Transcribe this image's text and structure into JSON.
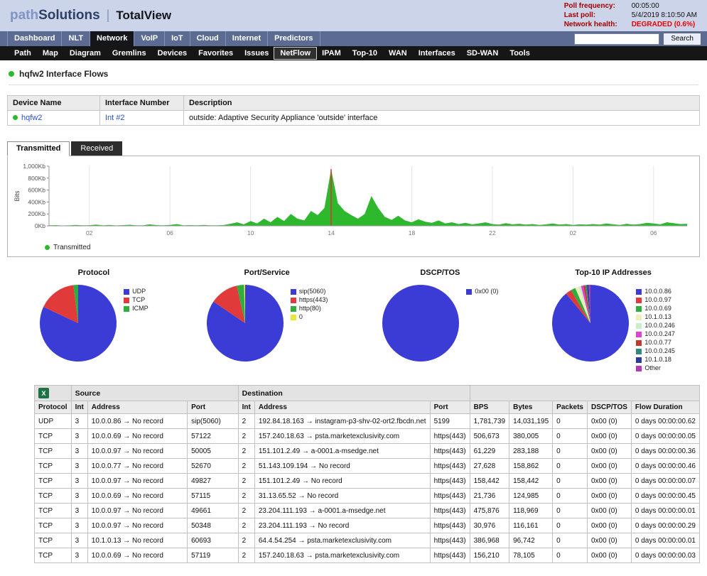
{
  "header": {
    "logo": {
      "brand_light": "path",
      "brand_dark": "Solutions",
      "divider": "|",
      "product": "TotalView"
    },
    "stats": [
      {
        "label": "Poll frequency:",
        "value": "00:05:00"
      },
      {
        "label": "Last poll:",
        "value": "5/4/2019 8:10:50 AM"
      },
      {
        "label": "Network health:",
        "value": "DEGRADED (0.6%)"
      }
    ]
  },
  "nav": {
    "items": [
      "Dashboard",
      "NLT",
      "Network",
      "VoIP",
      "IoT",
      "Cloud",
      "Internet",
      "Predictors"
    ],
    "active": "Network",
    "search": {
      "placeholder": "",
      "button_label": "Search"
    }
  },
  "subnav": {
    "items": [
      "Path",
      "Map",
      "Diagram",
      "Gremlins",
      "Devices",
      "Favorites",
      "Issues",
      "NetFlow",
      "IPAM",
      "Top-10",
      "WAN",
      "Interfaces",
      "SD-WAN",
      "Tools"
    ],
    "active": "NetFlow"
  },
  "page": {
    "title": "hqfw2 Interface Flows"
  },
  "device_table": {
    "columns": [
      "Device Name",
      "Interface Number",
      "Description"
    ],
    "rows": [
      {
        "device": "hqfw2",
        "interface": "Int #2",
        "description": "outside: Adaptive Security Appliance 'outside' interface"
      }
    ]
  },
  "view_tabs": {
    "items": [
      "Transmitted",
      "Received"
    ],
    "active": "Transmitted"
  },
  "chart_data": {
    "type": "area",
    "title": "Transmitted traffic (Bits over time)",
    "ylabel": "Bits",
    "ylim": [
      0,
      1000
    ],
    "y_ticks": [
      "1,000Kb",
      "800Kb",
      "600Kb",
      "400Kb",
      "200Kb",
      "0Kb"
    ],
    "x_ticks": [
      "02",
      "06",
      "10",
      "14",
      "18",
      "22",
      "02",
      "06"
    ],
    "x_tick_hours": [
      2,
      6,
      10,
      14,
      18,
      22,
      26,
      30
    ],
    "sample_interval_hours": 0.3333,
    "unit": "Kb",
    "series_name": "Transmitted",
    "series_color": "#2eb82e",
    "samples": [
      8,
      12,
      6,
      10,
      15,
      8,
      11,
      20,
      9,
      14,
      7,
      12,
      18,
      10,
      8,
      25,
      12,
      9,
      15,
      30,
      10,
      12,
      8,
      14,
      10,
      9,
      13,
      35,
      60,
      25,
      80,
      40,
      120,
      60,
      150,
      80,
      200,
      120,
      90,
      250,
      180,
      300,
      950,
      380,
      250,
      180,
      120,
      200,
      500,
      300,
      150,
      100,
      170,
      90,
      60,
      110,
      70,
      50,
      90,
      40,
      60,
      30,
      50,
      25,
      40,
      60,
      30,
      20,
      45,
      25,
      35,
      20,
      30,
      15,
      25,
      40,
      20,
      30,
      15,
      25,
      20,
      30,
      20,
      40,
      25,
      15,
      35,
      20,
      30,
      50,
      40,
      25,
      60,
      45,
      30,
      35
    ],
    "marker_index": 42,
    "marker_value": 950,
    "marker_color": "#d23b2e",
    "legend_label": "Transmitted",
    "grid": "vertical"
  },
  "pies": [
    {
      "title": "Protocol",
      "type": "pie",
      "slices": [
        {
          "label": "UDP",
          "value": 82,
          "color": "#3b3bd6"
        },
        {
          "label": "TCP",
          "value": 16,
          "color": "#e03a3a"
        },
        {
          "label": "ICMP",
          "value": 2,
          "color": "#2fae3e"
        }
      ]
    },
    {
      "title": "Port/Service",
      "type": "pie",
      "slices": [
        {
          "label": "sip(5060)",
          "value": 84.5,
          "color": "#3b3bd6"
        },
        {
          "label": "https(443)",
          "value": 12,
          "color": "#e03a3a"
        },
        {
          "label": "http(80)",
          "value": 3,
          "color": "#2fae3e"
        },
        {
          "label": "0",
          "value": 0.5,
          "color": "#e8e832"
        }
      ]
    },
    {
      "title": "DSCP/TOS",
      "type": "pie",
      "slices": [
        {
          "label": "0x00 (0)",
          "value": 100,
          "color": "#3b3bd6"
        }
      ]
    },
    {
      "title": "Top-10 IP Addresses",
      "type": "pie",
      "slices": [
        {
          "label": "10.0.0.86",
          "value": 89,
          "color": "#3b3bd6"
        },
        {
          "label": "10.0.0.97",
          "value": 2.5,
          "color": "#e03a3a"
        },
        {
          "label": "10.0.0.69",
          "value": 2,
          "color": "#2fae3e"
        },
        {
          "label": "10.1.0.13",
          "value": 1.5,
          "color": "#eeeebb"
        },
        {
          "label": "10.0.0.246",
          "value": 1,
          "color": "#c9eec9"
        },
        {
          "label": "10.0.0.247",
          "value": 1,
          "color": "#e33fd0"
        },
        {
          "label": "10.0.0.77",
          "value": 0.8,
          "color": "#c2392a"
        },
        {
          "label": "10.0.0.245",
          "value": 0.7,
          "color": "#2e8b7a"
        },
        {
          "label": "10.1.0.18",
          "value": 0.8,
          "color": "#2b3a9e"
        },
        {
          "label": "Other",
          "value": 0.7,
          "color": "#b23ab2"
        }
      ]
    }
  ],
  "flow_table": {
    "export_icon": "excel-export-icon",
    "group_headers": {
      "source": "Source",
      "destination": "Destination"
    },
    "columns": [
      "Protocol",
      "Int",
      "Address",
      "Port",
      "Int",
      "Address",
      "Port",
      "BPS",
      "Bytes",
      "Packets",
      "DSCP/TOS",
      "Flow Duration"
    ],
    "rows": [
      [
        "UDP",
        "3",
        "10.0.0.86 → No record",
        "sip(5060)",
        "2",
        "192.84.18.163 → instagram-p3-shv-02-ort2.fbcdn.net",
        "5199",
        "1,781,739",
        "14,031,195",
        "0",
        "0x00 (0)",
        "0 days 00:00:00.62"
      ],
      [
        "TCP",
        "3",
        "10.0.0.69 → No record",
        "57122",
        "2",
        "157.240.18.63 → psta.marketexclusivity.com",
        "https(443)",
        "506,673",
        "380,005",
        "0",
        "0x00 (0)",
        "0 days 00:00:00.05"
      ],
      [
        "TCP",
        "3",
        "10.0.0.97 → No record",
        "50005",
        "2",
        "151.101.2.49 → a-0001.a-msedge.net",
        "https(443)",
        "61,229",
        "283,188",
        "0",
        "0x00 (0)",
        "0 days 00:00:00.36"
      ],
      [
        "TCP",
        "3",
        "10.0.0.77 → No record",
        "52670",
        "2",
        "51.143.109.194 → No record",
        "https(443)",
        "27,628",
        "158,862",
        "0",
        "0x00 (0)",
        "0 days 00:00:00.46"
      ],
      [
        "TCP",
        "3",
        "10.0.0.97 → No record",
        "49827",
        "2",
        "151.101.2.49 → No record",
        "https(443)",
        "158,442",
        "158,442",
        "0",
        "0x00 (0)",
        "0 days 00:00:00.07"
      ],
      [
        "TCP",
        "3",
        "10.0.0.69 → No record",
        "57115",
        "2",
        "31.13.65.52 → No record",
        "https(443)",
        "21,736",
        "124,985",
        "0",
        "0x00 (0)",
        "0 days 00:00:00.45"
      ],
      [
        "TCP",
        "3",
        "10.0.0.97 → No record",
        "49661",
        "2",
        "23.204.111.193 → a-0001.a-msedge.net",
        "https(443)",
        "475,876",
        "118,969",
        "0",
        "0x00 (0)",
        "0 days 00:00:00.01"
      ],
      [
        "TCP",
        "3",
        "10.0.0.97 → No record",
        "50348",
        "2",
        "23.204.111.193 → No record",
        "https(443)",
        "30,976",
        "116,161",
        "0",
        "0x00 (0)",
        "0 days 00:00:00.29"
      ],
      [
        "TCP",
        "3",
        "10.1.0.13 → No record",
        "60693",
        "2",
        "64.4.54.254 → psta.marketexclusivity.com",
        "https(443)",
        "386,968",
        "96,742",
        "0",
        "0x00 (0)",
        "0 days 00:00:00.01"
      ],
      [
        "TCP",
        "3",
        "10.0.0.69 → No record",
        "57119",
        "2",
        "157.240.18.63 → psta.marketexclusivity.com",
        "https(443)",
        "156,210",
        "78,105",
        "0",
        "0x00 (0)",
        "0 days 00:00:00.03"
      ]
    ]
  }
}
